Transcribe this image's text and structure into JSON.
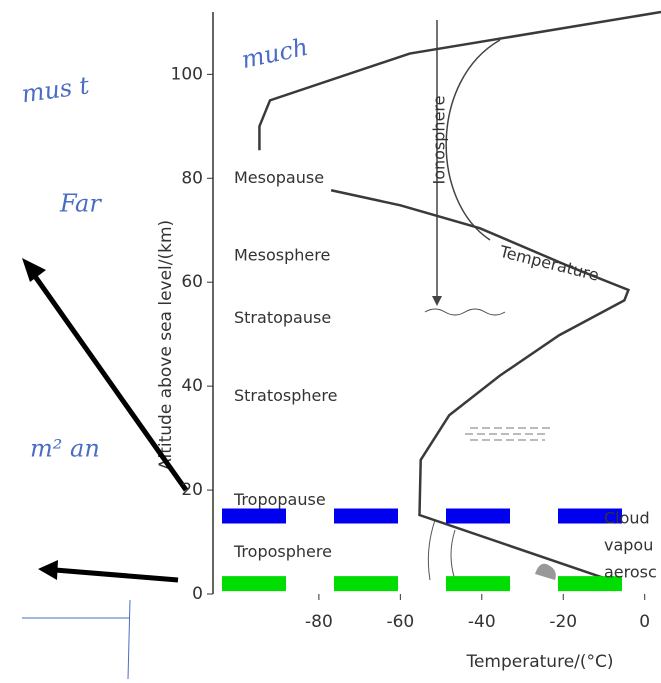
{
  "chart_data": {
    "type": "line",
    "xlabel": "Temperature/(°C)",
    "ylabel": "Altitude above sea level/(km)",
    "xlim": [
      -106,
      4
    ],
    "ylim": [
      0,
      112
    ],
    "xticks": [
      -80,
      -60,
      -40,
      -20,
      0
    ],
    "yticks": [
      0,
      20,
      40,
      60,
      80,
      100
    ],
    "series": [
      {
        "name": "Temperature",
        "color": "#3a3a3a",
        "x": [
          -8.6,
          -55.3,
          -55,
          -48,
          -35.6,
          -21,
          -5,
          -4,
          -18.4,
          -40.5,
          -60,
          -77,
          null,
          -94.6,
          -94.6,
          -92,
          -57.7,
          4
        ],
        "values": [
          2.7,
          15.2,
          25.8,
          34.4,
          42,
          49.8,
          56.5,
          58.5,
          63,
          70.4,
          74.8,
          77.7,
          null,
          85.4,
          90,
          95,
          104,
          112
        ]
      }
    ],
    "layer_labels": [
      {
        "text": "Mesopause",
        "value": 80
      },
      {
        "text": "Mesosphere",
        "value": 65
      },
      {
        "text": "Stratopause",
        "value": 53
      },
      {
        "text": "Stratosphere",
        "value": 38
      },
      {
        "text": "Tropopause",
        "value": 18
      },
      {
        "text": "Troposphere",
        "value": 8
      }
    ],
    "region_label": "Ionosphere",
    "side_labels": [
      "Cloud",
      "vapou",
      "aerosc"
    ],
    "reference_lines": [
      {
        "value": 15,
        "color": "#0000ee"
      },
      {
        "value": 2,
        "color": "#00dd00"
      }
    ],
    "handwriting": [
      "much",
      "mus t",
      "Far",
      "m² an"
    ]
  }
}
